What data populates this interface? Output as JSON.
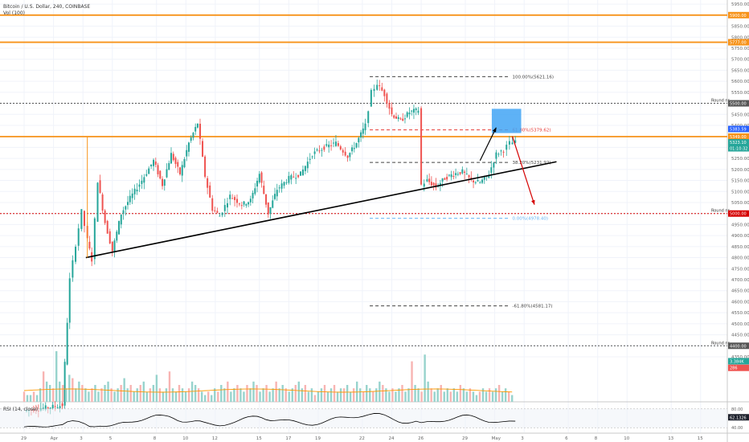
{
  "header": {
    "title": "Bitcoin / U.S. Dollar, 240, COINBASE",
    "volume_label": "Vol (100)",
    "rsi_label": "RSI (14, close)"
  },
  "chart_data": {
    "type": "candlestick",
    "title": "Bitcoin / U.S. Dollar, 240, COINBASE",
    "ylim": [
      4300,
      6120
    ],
    "y_ticks": [
      4350,
      4400,
      4450,
      4500,
      4550,
      4600,
      4650,
      4700,
      4750,
      4800,
      4850,
      4900,
      4950,
      5000,
      5050,
      5100,
      5150,
      5200,
      5250,
      5300,
      5350,
      5400,
      5450,
      5500,
      5550,
      5600,
      5650,
      5700,
      5750,
      5800,
      5850,
      5900,
      5950,
      6000,
      6050,
      6100
    ],
    "x_ticks": [
      {
        "label": "29",
        "day": -2.0
      },
      {
        "label": "Apr",
        "day": 0
      },
      {
        "label": "3",
        "day": 2
      },
      {
        "label": "5",
        "day": 4
      },
      {
        "label": "8",
        "day": 7
      },
      {
        "label": "10",
        "day": 9
      },
      {
        "label": "12",
        "day": 11
      },
      {
        "label": "15",
        "day": 14
      },
      {
        "label": "17",
        "day": 16
      },
      {
        "label": "19",
        "day": 18
      },
      {
        "label": "22",
        "day": 21
      },
      {
        "label": "24",
        "day": 23
      },
      {
        "label": "26",
        "day": 25
      },
      {
        "label": "29",
        "day": 28
      },
      {
        "label": "May",
        "day": 30
      },
      {
        "label": "3",
        "day": 32
      },
      {
        "label": "6",
        "day": 35
      },
      {
        "label": "8",
        "day": 37
      },
      {
        "label": "10",
        "day": 39
      },
      {
        "label": "13",
        "day": 42
      },
      {
        "label": "15",
        "day": 44
      }
    ],
    "price_path": [
      {
        "day": -2.0,
        "price": 4105
      },
      {
        "day": 0.6,
        "price": 4130
      },
      {
        "day": 1.1,
        "price": 4700
      },
      {
        "day": 1.5,
        "price": 4860
      },
      {
        "day": 1.9,
        "price": 5010
      },
      {
        "day": 2.3,
        "price": 4880
      },
      {
        "day": 2.6,
        "price": 4790
      },
      {
        "day": 3.0,
        "price": 5150
      },
      {
        "day": 3.5,
        "price": 4960
      },
      {
        "day": 4.0,
        "price": 4830
      },
      {
        "day": 4.6,
        "price": 5000
      },
      {
        "day": 5.2,
        "price": 5070
      },
      {
        "day": 6.0,
        "price": 5150
      },
      {
        "day": 6.8,
        "price": 5240
      },
      {
        "day": 7.4,
        "price": 5130
      },
      {
        "day": 8.0,
        "price": 5270
      },
      {
        "day": 8.6,
        "price": 5180
      },
      {
        "day": 9.2,
        "price": 5320
      },
      {
        "day": 9.8,
        "price": 5410
      },
      {
        "day": 10.3,
        "price": 5170
      },
      {
        "day": 10.8,
        "price": 5020
      },
      {
        "day": 11.3,
        "price": 4990
      },
      {
        "day": 12.0,
        "price": 5080
      },
      {
        "day": 12.8,
        "price": 5040
      },
      {
        "day": 13.4,
        "price": 5060
      },
      {
        "day": 14.0,
        "price": 5180
      },
      {
        "day": 14.6,
        "price": 5000
      },
      {
        "day": 15.2,
        "price": 5110
      },
      {
        "day": 16.0,
        "price": 5160
      },
      {
        "day": 16.8,
        "price": 5180
      },
      {
        "day": 17.6,
        "price": 5270
      },
      {
        "day": 18.4,
        "price": 5300
      },
      {
        "day": 19.2,
        "price": 5320
      },
      {
        "day": 20.0,
        "price": 5260
      },
      {
        "day": 20.6,
        "price": 5320
      },
      {
        "day": 21.2,
        "price": 5400
      },
      {
        "day": 21.6,
        "price": 5550
      },
      {
        "day": 22.0,
        "price": 5590
      },
      {
        "day": 22.5,
        "price": 5540
      },
      {
        "day": 23.0,
        "price": 5450
      },
      {
        "day": 23.6,
        "price": 5420
      },
      {
        "day": 24.2,
        "price": 5460
      },
      {
        "day": 24.8,
        "price": 5470
      },
      {
        "day": 25.0,
        "price": 5130
      },
      {
        "day": 25.4,
        "price": 5150
      },
      {
        "day": 26.0,
        "price": 5120
      },
      {
        "day": 26.6,
        "price": 5160
      },
      {
        "day": 27.2,
        "price": 5180
      },
      {
        "day": 27.8,
        "price": 5190
      },
      {
        "day": 28.4,
        "price": 5150
      },
      {
        "day": 29.0,
        "price": 5140
      },
      {
        "day": 29.6,
        "price": 5180
      },
      {
        "day": 30.1,
        "price": 5270
      },
      {
        "day": 30.6,
        "price": 5290
      },
      {
        "day": 31.0,
        "price": 5320
      },
      {
        "day": 31.4,
        "price": 5323
      }
    ],
    "price_label_boxes": [
      {
        "text": "6000.00",
        "price": 6000,
        "color": "#555555"
      },
      {
        "text": "5900.00",
        "price": 5900,
        "color": "#f7931a"
      },
      {
        "text": "5777.00",
        "price": 5777,
        "color": "#f7931a"
      },
      {
        "text": "5500.00",
        "price": 5500,
        "color": "#555555"
      },
      {
        "text": "5383.59",
        "price": 5383.59,
        "color": "#2962ff"
      },
      {
        "text": "5349.00",
        "price": 5349,
        "color": "#f7931a"
      },
      {
        "text": "5323.10",
        "price": 5323.1,
        "color": "#26a69a"
      },
      {
        "text": "01:10:32",
        "price": 5296,
        "color": "#26a69a"
      },
      {
        "text": "5000.00",
        "price": 5000,
        "color": "#d50000"
      },
      {
        "text": "4400.00",
        "price": 4400,
        "color": "#555555"
      },
      {
        "text": "3.384K",
        "price": 4330,
        "color": "#26a69a"
      },
      {
        "text": "286",
        "price": 4300,
        "color": "#ef5350"
      }
    ],
    "horizontal_lines": [
      {
        "price": 6000,
        "color": "#555555",
        "style": "solid",
        "label": "Round nr."
      },
      {
        "price": 5900,
        "color": "#f7931a",
        "style": "thick",
        "label": ""
      },
      {
        "price": 5777,
        "color": "#f7931a",
        "style": "thick",
        "label": ""
      },
      {
        "price": 5500,
        "color": "#555555",
        "style": "dotted",
        "label": "Round nr."
      },
      {
        "price": 5349,
        "color": "#f7931a",
        "style": "thick",
        "label": ""
      },
      {
        "price": 5000,
        "color": "#d50000",
        "style": "dotted",
        "label": "Round nr."
      },
      {
        "price": 4400,
        "color": "#555555",
        "style": "dotted",
        "label": "Round nr."
      }
    ],
    "fibonacci": [
      {
        "label": "100.00%(5621.16)",
        "price": 5621.16,
        "color": "#444444"
      },
      {
        "label": "61.80%(5379.62)",
        "price": 5379.62,
        "color": "#e53935"
      },
      {
        "label": "38.20%(5231.92)",
        "price": 5231.92,
        "color": "#444444"
      },
      {
        "label": "0.00%(4978.40)",
        "price": 4978.4,
        "color": "#64b5f6"
      },
      {
        "label": "-61.80%(4581.17)",
        "price": 4581.17,
        "color": "#444444"
      }
    ],
    "volume": [
      3,
      2,
      2,
      3,
      2,
      4,
      9,
      6,
      5,
      4,
      15,
      6,
      5,
      4,
      8,
      7,
      4,
      6,
      5,
      4,
      3,
      4,
      5,
      3,
      4,
      5,
      6,
      4,
      3,
      4,
      5,
      7,
      4,
      5,
      3,
      4,
      5,
      6,
      3,
      4,
      5,
      8,
      4,
      3,
      4,
      9,
      4,
      3,
      5,
      4,
      3,
      4,
      6,
      5,
      4,
      3,
      2,
      3,
      2,
      4,
      3,
      5,
      4,
      6,
      3,
      4,
      5,
      4,
      3,
      5,
      4,
      6,
      5,
      3,
      4,
      5,
      3,
      4,
      6,
      4,
      5,
      4,
      3,
      4,
      5,
      6,
      4,
      5,
      3,
      4,
      2,
      3,
      4,
      5,
      3,
      4,
      5,
      3,
      4,
      4,
      5,
      3,
      4,
      6,
      4,
      3,
      5,
      4,
      3,
      4,
      6,
      5,
      4,
      3,
      4,
      3,
      4,
      5,
      3,
      4,
      12,
      5,
      4,
      3,
      14,
      6,
      4,
      3,
      4,
      5,
      3,
      4,
      3,
      4,
      3,
      5,
      4,
      3,
      4,
      3,
      2,
      3,
      4,
      3,
      4,
      3,
      4,
      5,
      3,
      4,
      3,
      2
    ],
    "rsi_axis": {
      "levels": [
        80,
        40
      ],
      "current": 62.1326,
      "labels": [
        "80.00",
        "62.1326",
        "40.00"
      ]
    },
    "annotations": [
      {
        "kind": "rectangle",
        "color": "#42a5f5",
        "from_day": 29.8,
        "to_day": 31.8,
        "from_price": 5365,
        "to_price": 5475
      },
      {
        "kind": "trendline",
        "color": "#000000",
        "from": {
          "day": 2.2,
          "price": 4800
        },
        "to": {
          "day": 34.2,
          "price": 5235
        }
      },
      {
        "kind": "arrow",
        "color": "#000000",
        "from": {
          "day": 29.0,
          "price": 5240
        },
        "to": {
          "day": 30.1,
          "price": 5390
        }
      },
      {
        "kind": "arrow",
        "color": "#d50000",
        "from": {
          "day": 31.2,
          "price": 5350
        },
        "to": {
          "day": 32.7,
          "price": 5040
        }
      }
    ]
  },
  "colors": {
    "up": "#26a69a",
    "down": "#ef5350",
    "orange": "#f7931a",
    "grid": "#f0f3fa",
    "box": "#42a5f5"
  }
}
